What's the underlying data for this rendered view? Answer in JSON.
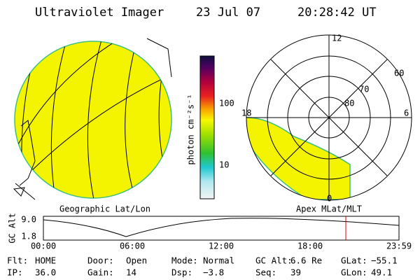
{
  "header": {
    "title": "Ultraviolet Imager",
    "date": "23 Jul 07",
    "time": "20:28:42 UT"
  },
  "colorbar": {
    "label": "photon cm⁻²s⁻¹",
    "ticks": [
      "100",
      "10"
    ]
  },
  "polar": {
    "mlt_labels": [
      "12",
      "18",
      "6",
      "0"
    ],
    "lat_labels": [
      "60",
      "70",
      "80"
    ]
  },
  "captions": {
    "left": "Geographic Lat/Lon",
    "right": "Apex MLat/MLT"
  },
  "altitude": {
    "label": "GC Alt",
    "ticks": [
      "9.0",
      "1.8"
    ],
    "times": [
      "00:00",
      "06:00",
      "12:00",
      "18:00",
      "23:59"
    ]
  },
  "footer": {
    "rows": [
      [
        {
          "label": "Flt:",
          "value": "HOME"
        },
        {
          "label": "Door:",
          "value": "Open"
        },
        {
          "label": "Mode:",
          "value": "Normal"
        },
        {
          "label": "GC Alt:",
          "value": "6.6 Re"
        },
        {
          "label": "GLat:",
          "value": "−55.1"
        }
      ],
      [
        {
          "label": "IP:",
          "value": "36.0"
        },
        {
          "label": "Gain:",
          "value": "14"
        },
        {
          "label": "Dsp:",
          "value": "−3.8"
        },
        {
          "label": "Seq:",
          "value": "39"
        },
        {
          "label": "GLon:",
          "value": "49.1"
        }
      ]
    ]
  }
}
